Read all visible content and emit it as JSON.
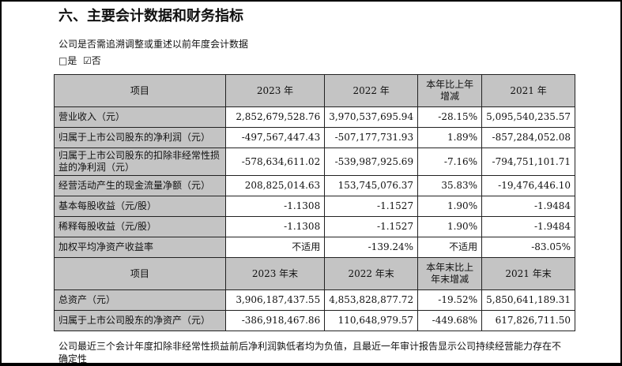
{
  "title": "六、主要会计数据和财务指标",
  "question": "公司是否需追溯调整或重述以前年度会计数据",
  "options": {
    "yes": "□是",
    "no": "☑否"
  },
  "table1": {
    "headers": [
      "项目",
      "2023 年",
      "2022 年",
      "本年比上年增减",
      "2021 年"
    ],
    "rows": [
      [
        "营业收入（元）",
        "2,852,679,528.76",
        "3,970,537,695.94",
        "-28.15%",
        "5,095,540,235.57"
      ],
      [
        "归属于上市公司股东的净利润（元）",
        "-497,567,447.43",
        "-507,177,731.93",
        "1.89%",
        "-857,284,052.08"
      ],
      [
        "归属于上市公司股东的扣除非经常性损益的净利润（元）",
        "-578,634,611.02",
        "-539,987,925.69",
        "-7.16%",
        "-794,751,101.71"
      ],
      [
        "经营活动产生的现金流量净额（元）",
        "208,825,014.63",
        "153,745,076.37",
        "35.83%",
        "-19,476,446.10"
      ],
      [
        "基本每股收益（元/股）",
        "-1.1308",
        "-1.1527",
        "1.90%",
        "-1.9484"
      ],
      [
        "稀释每股收益（元/股）",
        "-1.1308",
        "-1.1527",
        "1.90%",
        "-1.9484"
      ],
      [
        "加权平均净资产收益率",
        "不适用",
        "-139.24%",
        "不适用",
        "-83.05%"
      ]
    ]
  },
  "table2": {
    "headers": [
      "项目",
      "2023 年末",
      "2022 年末",
      "本年末比上年末增减",
      "2021 年末"
    ],
    "rows": [
      [
        "总资产（元）",
        "3,906,187,437.55",
        "4,853,828,877.72",
        "-19.52%",
        "5,850,641,189.31"
      ],
      [
        "归属于上市公司股东的净资产（元）",
        "-386,918,467.86",
        "110,648,979.57",
        "-449.68%",
        "617,826,711.50"
      ]
    ]
  },
  "note": "公司最近三个会计年度扣除非经常性损益前后净利润孰低者均为负值，且最近一年审计报告显示公司持续经营能力存在不确定性"
}
